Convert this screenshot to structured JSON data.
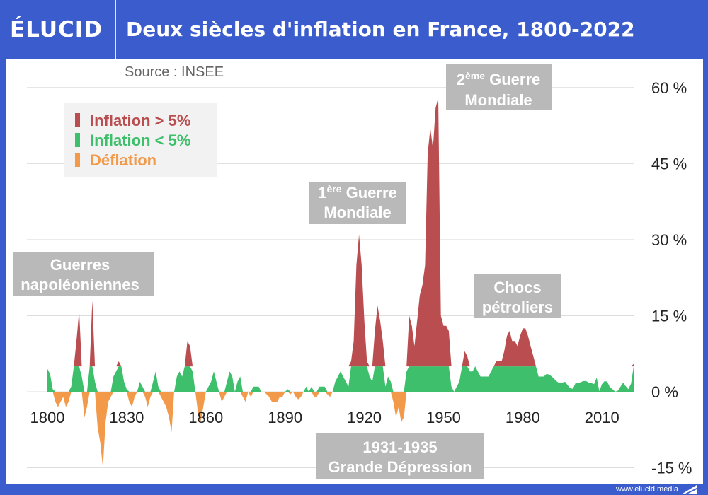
{
  "brand": {
    "logo_text": "ÉLUCID"
  },
  "title": "Deux siècles d'inflation en France, 1800-2022",
  "footer": {
    "site": "www.elucid.media"
  },
  "colors": {
    "frame": "#3a5ccc",
    "above5": "#b94d4f",
    "below5": "#3dbf6b",
    "deflation": "#f2994a",
    "annotation_bg": "#b9b9b9"
  },
  "chart_data": {
    "type": "area",
    "source": "Source : INSEE",
    "x_ticks": [
      "1800",
      "1830",
      "1860",
      "1890",
      "1920",
      "1950",
      "1980",
      "2010"
    ],
    "y_ticks": [
      "60 %",
      "45 %",
      "30 %",
      "15 %",
      "0 %",
      "-15 %"
    ],
    "xlim": [
      1800,
      2022
    ],
    "ylim": [
      -15,
      60
    ],
    "threshold": 5,
    "legend": [
      {
        "label": "Inflation > 5%",
        "color": "#b94d4f"
      },
      {
        "label": "Inflation < 5%",
        "color": "#3dbf6b"
      },
      {
        "label": "Déflation",
        "color": "#f2994a"
      }
    ],
    "annotations": [
      {
        "lines": [
          "Guerres",
          "napoléoniennes"
        ]
      },
      {
        "lines": [
          "1ère Guerre",
          "Mondiale"
        ]
      },
      {
        "lines": [
          "2ème Guerre",
          "Mondiale"
        ]
      },
      {
        "lines": [
          "Chocs",
          "pétroliers"
        ]
      },
      {
        "lines": [
          "1931-1935",
          "Grande Dépression"
        ]
      }
    ],
    "series": [
      {
        "values": [
          [
            1800,
            4.5
          ],
          [
            1801,
            3.5
          ],
          [
            1802,
            0.5
          ],
          [
            1803,
            -2
          ],
          [
            1804,
            -3
          ],
          [
            1805,
            -2
          ],
          [
            1806,
            -1
          ],
          [
            1807,
            -3
          ],
          [
            1808,
            -2
          ],
          [
            1809,
            1
          ],
          [
            1810,
            5
          ],
          [
            1811,
            10
          ],
          [
            1812,
            16
          ],
          [
            1813,
            3
          ],
          [
            1814,
            -5
          ],
          [
            1815,
            -3
          ],
          [
            1816,
            5
          ],
          [
            1817,
            18
          ],
          [
            1818,
            2
          ],
          [
            1819,
            -7
          ],
          [
            1820,
            -10
          ],
          [
            1821,
            -15
          ],
          [
            1822,
            -6
          ],
          [
            1823,
            -2
          ],
          [
            1824,
            -1
          ],
          [
            1825,
            3
          ],
          [
            1826,
            4
          ],
          [
            1827,
            6
          ],
          [
            1828,
            5
          ],
          [
            1829,
            2
          ],
          [
            1830,
            0.5
          ],
          [
            1831,
            -2
          ],
          [
            1832,
            -3
          ],
          [
            1833,
            -1
          ],
          [
            1834,
            0
          ],
          [
            1835,
            2
          ],
          [
            1836,
            1
          ],
          [
            1837,
            -1
          ],
          [
            1838,
            -3
          ],
          [
            1839,
            -1
          ],
          [
            1840,
            2
          ],
          [
            1841,
            4
          ],
          [
            1842,
            1
          ],
          [
            1843,
            -1
          ],
          [
            1844,
            -2
          ],
          [
            1845,
            -3
          ],
          [
            1846,
            -5
          ],
          [
            1847,
            -8
          ],
          [
            1848,
            0
          ],
          [
            1849,
            3
          ],
          [
            1850,
            4
          ],
          [
            1851,
            3
          ],
          [
            1852,
            5
          ],
          [
            1853,
            10
          ],
          [
            1854,
            9
          ],
          [
            1855,
            4
          ],
          [
            1856,
            0
          ],
          [
            1857,
            -4
          ],
          [
            1858,
            -6
          ],
          [
            1859,
            -3
          ],
          [
            1860,
            0
          ],
          [
            1861,
            1
          ],
          [
            1862,
            2
          ],
          [
            1863,
            4
          ],
          [
            1864,
            2
          ],
          [
            1865,
            0
          ],
          [
            1866,
            -2
          ],
          [
            1867,
            -1
          ],
          [
            1868,
            2
          ],
          [
            1869,
            4
          ],
          [
            1870,
            3
          ],
          [
            1871,
            0
          ],
          [
            1872,
            2
          ],
          [
            1873,
            3
          ],
          [
            1874,
            -1
          ],
          [
            1875,
            -2
          ],
          [
            1876,
            0
          ],
          [
            1877,
            -1
          ],
          [
            1878,
            1
          ],
          [
            1879,
            1
          ],
          [
            1880,
            1
          ],
          [
            1881,
            0
          ],
          [
            1882,
            0
          ],
          [
            1883,
            -0.5
          ],
          [
            1884,
            -1
          ],
          [
            1885,
            -2
          ],
          [
            1886,
            -2
          ],
          [
            1887,
            -2
          ],
          [
            1888,
            -1
          ],
          [
            1889,
            -1
          ],
          [
            1890,
            0
          ],
          [
            1891,
            0.5
          ],
          [
            1892,
            -0.5
          ],
          [
            1893,
            0
          ],
          [
            1894,
            -1
          ],
          [
            1895,
            -1.5
          ],
          [
            1896,
            -1
          ],
          [
            1897,
            0
          ],
          [
            1898,
            1
          ],
          [
            1899,
            0
          ],
          [
            1900,
            1
          ],
          [
            1901,
            -1
          ],
          [
            1902,
            -1
          ],
          [
            1903,
            1
          ],
          [
            1904,
            1
          ],
          [
            1905,
            1
          ],
          [
            1906,
            -0.5
          ],
          [
            1907,
            -1
          ],
          [
            1908,
            0
          ],
          [
            1909,
            2
          ],
          [
            1910,
            3
          ],
          [
            1911,
            4
          ],
          [
            1912,
            3
          ],
          [
            1913,
            2
          ],
          [
            1914,
            1
          ],
          [
            1915,
            6
          ],
          [
            1916,
            10
          ],
          [
            1917,
            25
          ],
          [
            1918,
            31
          ],
          [
            1919,
            25
          ],
          [
            1920,
            14
          ],
          [
            1921,
            6
          ],
          [
            1922,
            3
          ],
          [
            1923,
            2
          ],
          [
            1924,
            12
          ],
          [
            1925,
            17
          ],
          [
            1926,
            14
          ],
          [
            1927,
            10
          ],
          [
            1928,
            1
          ],
          [
            1929,
            3
          ],
          [
            1930,
            2
          ],
          [
            1931,
            -2
          ],
          [
            1932,
            -5
          ],
          [
            1933,
            -3
          ],
          [
            1934,
            -6
          ],
          [
            1935,
            -5
          ],
          [
            1936,
            4
          ],
          [
            1937,
            15
          ],
          [
            1938,
            13
          ],
          [
            1939,
            9
          ],
          [
            1940,
            14
          ],
          [
            1941,
            19
          ],
          [
            1942,
            21
          ],
          [
            1943,
            25
          ],
          [
            1944,
            47
          ],
          [
            1945,
            52
          ],
          [
            1946,
            48
          ],
          [
            1947,
            56
          ],
          [
            1948,
            58
          ],
          [
            1949,
            15
          ],
          [
            1950,
            13
          ],
          [
            1951,
            13
          ],
          [
            1952,
            12
          ],
          [
            1953,
            1
          ],
          [
            1954,
            0
          ],
          [
            1955,
            1
          ],
          [
            1956,
            2
          ],
          [
            1957,
            5
          ],
          [
            1958,
            8
          ],
          [
            1959,
            7
          ],
          [
            1960,
            4
          ],
          [
            1961,
            4
          ],
          [
            1962,
            5
          ],
          [
            1963,
            4
          ],
          [
            1964,
            3
          ],
          [
            1965,
            3
          ],
          [
            1966,
            3
          ],
          [
            1967,
            3
          ],
          [
            1968,
            4
          ],
          [
            1969,
            5
          ],
          [
            1970,
            6
          ],
          [
            1971,
            6
          ],
          [
            1972,
            6
          ],
          [
            1973,
            8
          ],
          [
            1974,
            11
          ],
          [
            1975,
            12
          ],
          [
            1976,
            10
          ],
          [
            1977,
            10
          ],
          [
            1978,
            9
          ],
          [
            1979,
            11
          ],
          [
            1980,
            12.5
          ],
          [
            1981,
            12.5
          ],
          [
            1982,
            11
          ],
          [
            1983,
            9
          ],
          [
            1984,
            7
          ],
          [
            1985,
            5
          ],
          [
            1986,
            3
          ],
          [
            1987,
            3
          ],
          [
            1988,
            3
          ],
          [
            1989,
            3.5
          ],
          [
            1990,
            3.4
          ],
          [
            1991,
            3
          ],
          [
            1992,
            2.5
          ],
          [
            1993,
            2
          ],
          [
            1994,
            1.7
          ],
          [
            1995,
            1.8
          ],
          [
            1996,
            2
          ],
          [
            1997,
            1.3
          ],
          [
            1998,
            0.7
          ],
          [
            1999,
            0.6
          ],
          [
            2000,
            1.7
          ],
          [
            2001,
            1.7
          ],
          [
            2002,
            1.9
          ],
          [
            2003,
            2.1
          ],
          [
            2004,
            2.1
          ],
          [
            2005,
            1.8
          ],
          [
            2006,
            1.7
          ],
          [
            2007,
            1.5
          ],
          [
            2008,
            2.8
          ],
          [
            2009,
            0.1
          ],
          [
            2010,
            1.5
          ],
          [
            2011,
            2.1
          ],
          [
            2012,
            2.0
          ],
          [
            2013,
            0.9
          ],
          [
            2014,
            0.5
          ],
          [
            2015,
            0.0
          ],
          [
            2016,
            0.2
          ],
          [
            2017,
            1.0
          ],
          [
            2018,
            1.8
          ],
          [
            2019,
            1.1
          ],
          [
            2020,
            0.5
          ],
          [
            2021,
            1.6
          ],
          [
            2022,
            5.5
          ]
        ]
      }
    ]
  }
}
